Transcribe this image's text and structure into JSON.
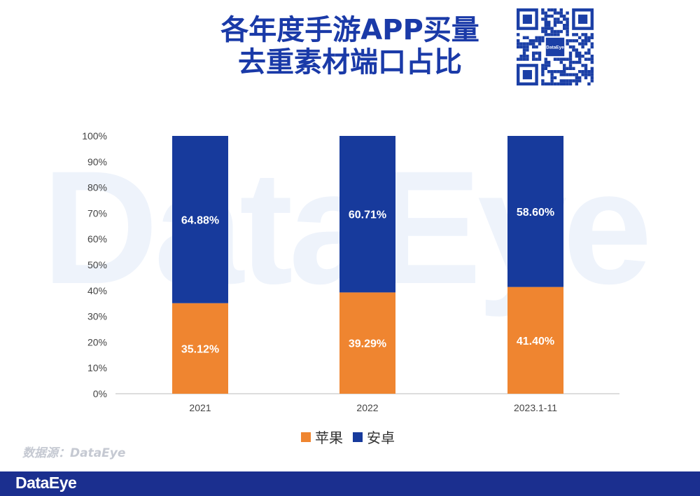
{
  "title_line1": "各年度手游APP买量",
  "title_line2": "去重素材端口占比",
  "watermark": "DataEye",
  "qr_logo": "DataEye",
  "source": "数据源：DataEye",
  "footer_logo": "DataEye",
  "colors": {
    "apple": "#ef8530",
    "android": "#173a9c",
    "title": "#1a3aa8",
    "footer": "#1b2f8f"
  },
  "chart_data": {
    "type": "bar",
    "stacked": true,
    "categories": [
      "2021",
      "2022",
      "2023.1-11"
    ],
    "series": [
      {
        "name": "苹果",
        "values": [
          35.12,
          39.29,
          41.4
        ],
        "labels": [
          "35.12%",
          "39.29%",
          "41.40%"
        ]
      },
      {
        "name": "安卓",
        "values": [
          64.88,
          60.71,
          58.6
        ],
        "labels": [
          "64.88%",
          "60.71%",
          "58.60%"
        ]
      }
    ],
    "yticks": [
      "0%",
      "10%",
      "20%",
      "30%",
      "40%",
      "50%",
      "60%",
      "70%",
      "80%",
      "90%",
      "100%"
    ],
    "ylim": [
      0,
      100
    ],
    "legend_position": "bottom",
    "grid": false
  }
}
